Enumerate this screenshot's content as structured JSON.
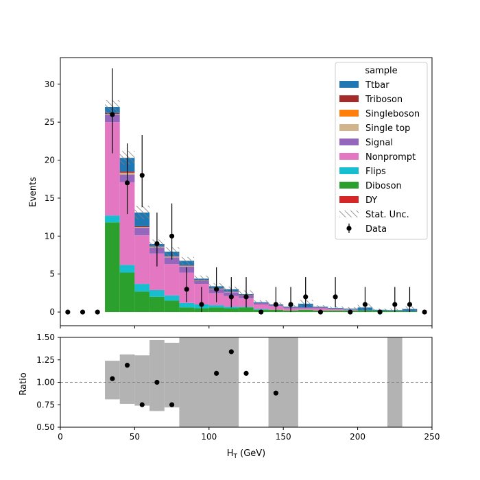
{
  "chart_data": [
    {
      "type": "bar",
      "subtype": "stacked-histogram",
      "ylabel": "Events",
      "xlim": [
        0,
        250
      ],
      "ylim": [
        -1.8,
        33.5
      ],
      "yticks": [
        "0",
        "5",
        "10",
        "15",
        "20",
        "25",
        "30"
      ],
      "bin_edges": [
        0,
        10,
        20,
        30,
        40,
        50,
        60,
        70,
        80,
        90,
        100,
        110,
        120,
        130,
        140,
        150,
        160,
        170,
        180,
        190,
        200,
        210,
        220,
        230,
        240,
        250
      ],
      "legend": {
        "title": "sample",
        "placement": "top-right",
        "entries": [
          {
            "label": "Ttbar",
            "color": "#1f77b4",
            "kind": "patch"
          },
          {
            "label": "Triboson",
            "color": "#a52a2a",
            "kind": "patch"
          },
          {
            "label": "Singleboson",
            "color": "#ff7f0e",
            "kind": "patch"
          },
          {
            "label": "Single top",
            "color": "#d2b48c",
            "kind": "patch"
          },
          {
            "label": "Signal",
            "color": "#9467bd",
            "kind": "patch"
          },
          {
            "label": "Nonprompt",
            "color": "#e377c2",
            "kind": "patch"
          },
          {
            "label": "Flips",
            "color": "#17becf",
            "kind": "patch"
          },
          {
            "label": "Diboson",
            "color": "#2ca02c",
            "kind": "patch"
          },
          {
            "label": "DY",
            "color": "#d62728",
            "kind": "patch"
          },
          {
            "label": "Stat. Unc.",
            "color": "#808080",
            "kind": "hatch"
          },
          {
            "label": "Data",
            "color": "#000000",
            "kind": "errorbar"
          }
        ]
      },
      "series": [
        {
          "name": "Diboson",
          "color": "#2ca02c",
          "values": [
            0,
            0,
            0,
            11.8,
            5.2,
            2.7,
            2.0,
            1.5,
            0.6,
            0.5,
            0.6,
            0.5,
            0.6,
            0.3,
            0.3,
            0.2,
            0.3,
            0.2,
            0.2,
            0.2,
            0.2,
            0.2,
            0.15,
            0.1,
            0.0
          ]
        },
        {
          "name": "Flips",
          "color": "#17becf",
          "values": [
            0,
            0,
            0,
            0.9,
            1.0,
            1.0,
            0.9,
            0.7,
            0.6,
            0.5,
            0.3,
            0.2,
            0.1,
            0.1,
            0,
            0,
            0,
            0,
            0,
            0,
            0,
            0,
            0,
            0,
            0
          ]
        },
        {
          "name": "Nonprompt",
          "color": "#e377c2",
          "values": [
            0,
            0,
            0,
            12.3,
            10.9,
            6.4,
            4.8,
            4.1,
            4.0,
            2.7,
            1.6,
            1.4,
            1.1,
            0.6,
            0.5,
            0.3,
            0.2,
            0.3,
            0.2,
            0.1,
            0.0,
            0.0,
            0.0,
            0.0,
            0.0
          ]
        },
        {
          "name": "Signal",
          "color": "#9467bd",
          "values": [
            0,
            0,
            0,
            1.0,
            1.0,
            1.0,
            0.8,
            0.9,
            0.8,
            0.4,
            0.5,
            0.5,
            0.4,
            0.2,
            0.1,
            0.1,
            0.1,
            0.1,
            0.05,
            0.05,
            0.0,
            0.0,
            0.0,
            0.0,
            0.0
          ]
        },
        {
          "name": "Single top",
          "color": "#d2b48c",
          "values": [
            0,
            0,
            0,
            0.1,
            0.2,
            0.1,
            0.1,
            0.1,
            0.1,
            0.05,
            0.05,
            0.05,
            0,
            0,
            0,
            0,
            0,
            0,
            0,
            0,
            0,
            0,
            0,
            0,
            0
          ]
        },
        {
          "name": "Singleboson",
          "color": "#ff7f0e",
          "values": [
            0,
            0,
            0,
            0,
            0.05,
            0,
            0,
            0,
            0,
            0,
            0,
            0,
            0,
            0,
            0,
            0,
            0,
            0,
            0,
            0,
            0,
            0,
            0,
            0,
            0
          ]
        },
        {
          "name": "Triboson",
          "color": "#a52a2a",
          "values": [
            0,
            0,
            0,
            0.1,
            0.15,
            0.1,
            0.05,
            0.05,
            0.05,
            0.05,
            0.05,
            0.05,
            0.05,
            0,
            0,
            0,
            0,
            0,
            0,
            0,
            0,
            0,
            0,
            0,
            0
          ]
        },
        {
          "name": "DY",
          "color": "#d62728",
          "values": [
            0,
            0,
            0,
            0,
            0,
            0,
            0,
            0,
            0,
            0,
            0,
            0,
            0,
            0,
            0,
            0,
            0,
            0,
            0,
            0,
            0,
            0,
            0,
            0,
            0
          ]
        },
        {
          "name": "Ttbar",
          "color": "#1f77b4",
          "values": [
            0,
            0,
            0,
            0.8,
            1.8,
            1.8,
            0.3,
            0.6,
            0.6,
            0.2,
            0.3,
            0.3,
            0.1,
            0.1,
            0.1,
            0.1,
            0.5,
            0.1,
            0.1,
            0.1,
            0.4,
            0.1,
            0.1,
            0.3,
            0.0
          ]
        }
      ],
      "stat_unc": [
        0,
        0,
        0,
        0.9,
        0.9,
        0.9,
        0.6,
        0.6,
        0.5,
        0.4,
        0.4,
        0.35,
        0.5,
        0.25,
        0.25,
        0.2,
        0.5,
        0.2,
        0.2,
        0.2,
        0.5,
        0.15,
        0.2,
        0.35,
        0
      ],
      "data_points": {
        "name": "Data",
        "x": [
          5,
          15,
          25,
          35,
          45,
          55,
          65,
          75,
          85,
          95,
          105,
          115,
          125,
          135,
          145,
          155,
          165,
          175,
          185,
          195,
          205,
          215,
          225,
          235,
          245
        ],
        "y": [
          0,
          0,
          0,
          26,
          17,
          18,
          9,
          10,
          3,
          1,
          3,
          2,
          2,
          0,
          1,
          1,
          2,
          0,
          2,
          0,
          1,
          0,
          1,
          1,
          0
        ],
        "err_low": [
          0,
          0,
          0,
          5.1,
          4.1,
          4.2,
          3.0,
          3.1,
          1.7,
          1.0,
          1.7,
          1.4,
          1.4,
          0,
          1.0,
          1.0,
          1.4,
          0,
          1.4,
          0,
          1.0,
          0,
          1.0,
          1.0,
          0
        ],
        "err_high": [
          0,
          0,
          0,
          6.1,
          5.2,
          5.3,
          4.1,
          4.3,
          2.9,
          2.3,
          2.9,
          2.6,
          2.6,
          0,
          2.3,
          2.3,
          2.6,
          0,
          2.6,
          0,
          2.3,
          0,
          2.3,
          2.3,
          0
        ]
      }
    },
    {
      "type": "scatter",
      "xlabel": "H$_T$ (GeV)",
      "ylabel": "Ratio",
      "xlim": [
        0,
        250
      ],
      "ylim": [
        0.5,
        1.5
      ],
      "xticks": [
        "0",
        "50",
        "100",
        "150",
        "200",
        "250"
      ],
      "yticks": [
        "0.50",
        "0.75",
        "1.00",
        "1.25",
        "1.50"
      ],
      "reference_line": 1.0,
      "uncertainty_band": {
        "color": "#b3b3b3",
        "bins": [
          {
            "x0": 30,
            "x1": 40,
            "lo": 0.81,
            "hi": 1.24
          },
          {
            "x0": 40,
            "x1": 50,
            "lo": 0.76,
            "hi": 1.31
          },
          {
            "x0": 50,
            "x1": 60,
            "lo": 0.74,
            "hi": 1.3
          },
          {
            "x0": 60,
            "x1": 70,
            "lo": 0.68,
            "hi": 1.47
          },
          {
            "x0": 70,
            "x1": 80,
            "lo": 0.72,
            "hi": 1.44
          },
          {
            "x0": 80,
            "x1": 120,
            "lo": 0.5,
            "hi": 1.5
          },
          {
            "x0": 140,
            "x1": 160,
            "lo": 0.5,
            "hi": 1.5
          },
          {
            "x0": 220,
            "x1": 230,
            "lo": 0.5,
            "hi": 1.5
          }
        ]
      },
      "points": {
        "x": [
          35,
          45,
          55,
          65,
          75,
          105,
          115,
          125,
          145
        ],
        "y": [
          1.04,
          1.19,
          0.75,
          1.0,
          0.75,
          1.1,
          1.34,
          1.1,
          0.88
        ]
      }
    }
  ],
  "main_axis_label": "H",
  "main_axis_sub": "T",
  "main_axis_unit": " (GeV)",
  "ratio_axis_label": "Ratio",
  "events_axis_label": "Events"
}
